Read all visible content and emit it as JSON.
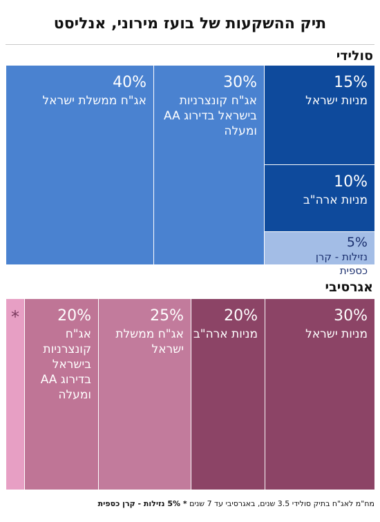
{
  "title": "תיק ההשקעות של בועז מירוני, אנליסט",
  "footnote": {
    "regular": "מח\"מ לאג\"ח בתיק סולידי 3.5 שנים, באגרסיבי עד 7 שנים",
    "bold": "* 5% נזילות - קרן כספית"
  },
  "chart_data": [
    {
      "type": "treemap",
      "title": "סולידי",
      "items": [
        {
          "label": "אג\"ח ממשלת ישראל",
          "value": 40,
          "pct_text": "40%",
          "color": "#4a82d0"
        },
        {
          "label": "אג\"ח קונצרניות בישראל בדירוג AA ומעלה",
          "value": 30,
          "pct_text": "30%",
          "color": "#4a82d0"
        },
        {
          "label": "מניות ישראל",
          "value": 15,
          "pct_text": "15%",
          "color": "#0e4a9c"
        },
        {
          "label": "מניות ארה\"ב",
          "value": 10,
          "pct_text": "10%",
          "color": "#0e4a9c"
        },
        {
          "label": "נזילות - קרן כספית",
          "value": 5,
          "pct_text": "5%",
          "color": "#a3bde6"
        }
      ]
    },
    {
      "type": "treemap",
      "title": "אגרסיבי",
      "items": [
        {
          "label": "מניות ישראל",
          "value": 30,
          "pct_text": "30%",
          "color": "#8c4466"
        },
        {
          "label": "מניות ארה\"ב",
          "value": 20,
          "pct_text": "20%",
          "color": "#8c4466"
        },
        {
          "label": "אג\"ח ממשלת ישראל",
          "value": 25,
          "pct_text": "25%",
          "color": "#c27b9c"
        },
        {
          "label": "אג\"ח קונצרניות בישראל בדירוג AA ומעלה",
          "value": 20,
          "pct_text": "20%",
          "color": "#bf7596"
        },
        {
          "label": "",
          "value": 5,
          "pct_text": "*",
          "color": "#e79fc4"
        }
      ]
    }
  ]
}
